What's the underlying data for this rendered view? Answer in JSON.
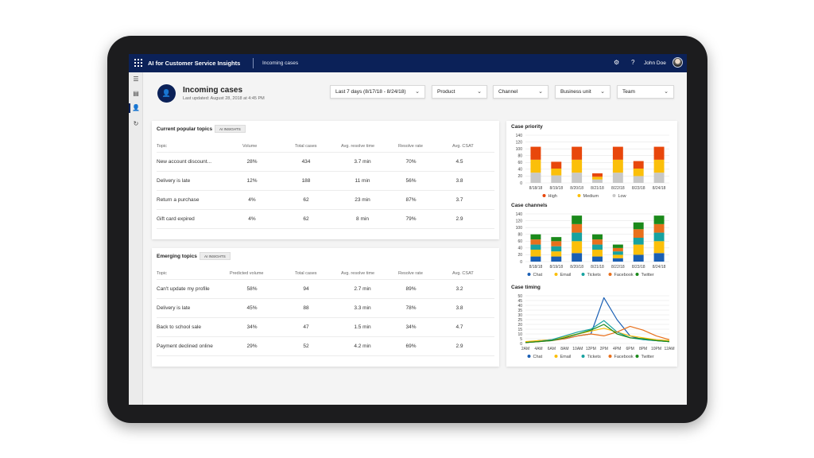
{
  "app": {
    "title": "AI for Customer Service Insights",
    "breadcrumb": "Incoming cases",
    "settings_icon": "gear-icon",
    "help_icon": "question-icon",
    "help_glyph": "?",
    "user_name": "John Doe"
  },
  "page": {
    "title": "Incoming cases",
    "last_updated": "Last updated:  August 28, 2018 at 4:45 PM"
  },
  "filters": [
    {
      "label": "Last 7 days (8/17/18 - 8/24/18)"
    },
    {
      "label": "Product"
    },
    {
      "label": "Channel"
    },
    {
      "label": "Business unit"
    },
    {
      "label": "Team"
    }
  ],
  "popular": {
    "title": "Current popular topics",
    "badge": "AI INSIGHTS",
    "columns": [
      "Topic",
      "Volume",
      "Total cases",
      "Avg. resolve time",
      "Resolve rate",
      "Avg. CSAT"
    ],
    "rows": [
      [
        "New account discount...",
        "28%",
        "434",
        "3.7 min",
        "70%",
        "4.5"
      ],
      [
        "Delivery is late",
        "12%",
        "188",
        "11 min",
        "56%",
        "3.8"
      ],
      [
        "Return a purchase",
        "4%",
        "62",
        "23 min",
        "87%",
        "3.7"
      ],
      [
        "Gift card expired",
        "4%",
        "62",
        "8 min",
        "79%",
        "2.9"
      ]
    ]
  },
  "emerging": {
    "title": "Emerging topics",
    "badge": "AI INSIGHTS",
    "columns": [
      "Topic",
      "Predicted volume",
      "Total cases",
      "Avg. resolve time",
      "Resolve rate",
      "Avg. CSAT"
    ],
    "rows": [
      [
        "Can't update my profile",
        "58%",
        "94",
        "2.7 min",
        "89%",
        "3.2"
      ],
      [
        "Delivery is late",
        "45%",
        "88",
        "3.3 min",
        "78%",
        "3.8"
      ],
      [
        "Back to school sale",
        "34%",
        "47",
        "1.5 min",
        "34%",
        "4.7"
      ],
      [
        "Payment declined online",
        "29%",
        "52",
        "4.2 min",
        "69%",
        "2.9"
      ]
    ]
  },
  "chart_data": [
    {
      "type": "bar",
      "stacked": true,
      "title": "Case priority",
      "categories": [
        "8/18/18",
        "8/19/18",
        "8/20/18",
        "8/21/18",
        "8/22/18",
        "8/23/18",
        "8/24/18"
      ],
      "ylim": [
        0,
        140
      ],
      "yticks": [
        0,
        20,
        40,
        60,
        80,
        100,
        120,
        140
      ],
      "grid": true,
      "legend": "bottom",
      "series": [
        {
          "name": "Low",
          "color": "#c8c8c8",
          "values": [
            30,
            22,
            30,
            10,
            30,
            20,
            30
          ]
        },
        {
          "name": "Medium",
          "color": "#fbbf0a",
          "values": [
            38,
            20,
            38,
            8,
            38,
            22,
            38
          ]
        },
        {
          "name": "High",
          "color": "#e8470c",
          "values": [
            38,
            20,
            38,
            10,
            38,
            22,
            38
          ]
        }
      ]
    },
    {
      "type": "bar",
      "stacked": true,
      "title": "Case channels",
      "categories": [
        "8/18/18",
        "8/19/18",
        "8/20/18",
        "8/21/18",
        "8/22/18",
        "8/23/18",
        "8/24/18"
      ],
      "ylim": [
        0,
        140
      ],
      "yticks": [
        0,
        20,
        40,
        60,
        80,
        100,
        120,
        140
      ],
      "grid": true,
      "legend": "bottom",
      "series": [
        {
          "name": "Chat",
          "color": "#1a5fb4",
          "values": [
            15,
            15,
            25,
            15,
            10,
            20,
            25
          ]
        },
        {
          "name": "Email",
          "color": "#fbbf0a",
          "values": [
            20,
            15,
            35,
            20,
            10,
            30,
            35
          ]
        },
        {
          "name": "Tickets",
          "color": "#17a2a0",
          "values": [
            15,
            15,
            25,
            15,
            10,
            20,
            25
          ]
        },
        {
          "name": "Facebook",
          "color": "#e8701c",
          "values": [
            15,
            15,
            25,
            15,
            10,
            25,
            25
          ]
        },
        {
          "name": "Twitter",
          "color": "#1b8a1b",
          "values": [
            15,
            12,
            25,
            15,
            10,
            20,
            25
          ]
        }
      ]
    },
    {
      "type": "line",
      "title": "Case timing",
      "x": [
        "2AM",
        "4AM",
        "6AM",
        "8AM",
        "10AM",
        "12PM",
        "2PM",
        "4PM",
        "6PM",
        "8PM",
        "10PM",
        "12AM"
      ],
      "ylim": [
        0,
        50
      ],
      "yticks": [
        0,
        5,
        10,
        15,
        20,
        25,
        30,
        35,
        40,
        45,
        50
      ],
      "grid": true,
      "legend": "bottom",
      "series": [
        {
          "name": "Chat",
          "color": "#1a5fb4",
          "values": [
            1,
            3,
            4,
            5,
            8,
            10,
            48,
            25,
            8,
            4,
            3,
            2
          ]
        },
        {
          "name": "Email",
          "color": "#fbbf0a",
          "values": [
            2,
            3,
            4,
            7,
            10,
            13,
            16,
            12,
            8,
            6,
            4,
            3
          ]
        },
        {
          "name": "Tickets",
          "color": "#17a2a0",
          "values": [
            1,
            2,
            4,
            8,
            12,
            15,
            24,
            12,
            6,
            4,
            3,
            2
          ]
        },
        {
          "name": "Facebook",
          "color": "#e8701c",
          "values": [
            1,
            2,
            3,
            5,
            8,
            10,
            8,
            12,
            18,
            14,
            8,
            4
          ]
        },
        {
          "name": "Twitter",
          "color": "#1b8a1b",
          "values": [
            1,
            2,
            3,
            6,
            10,
            14,
            20,
            10,
            6,
            5,
            3,
            2
          ]
        }
      ]
    }
  ]
}
